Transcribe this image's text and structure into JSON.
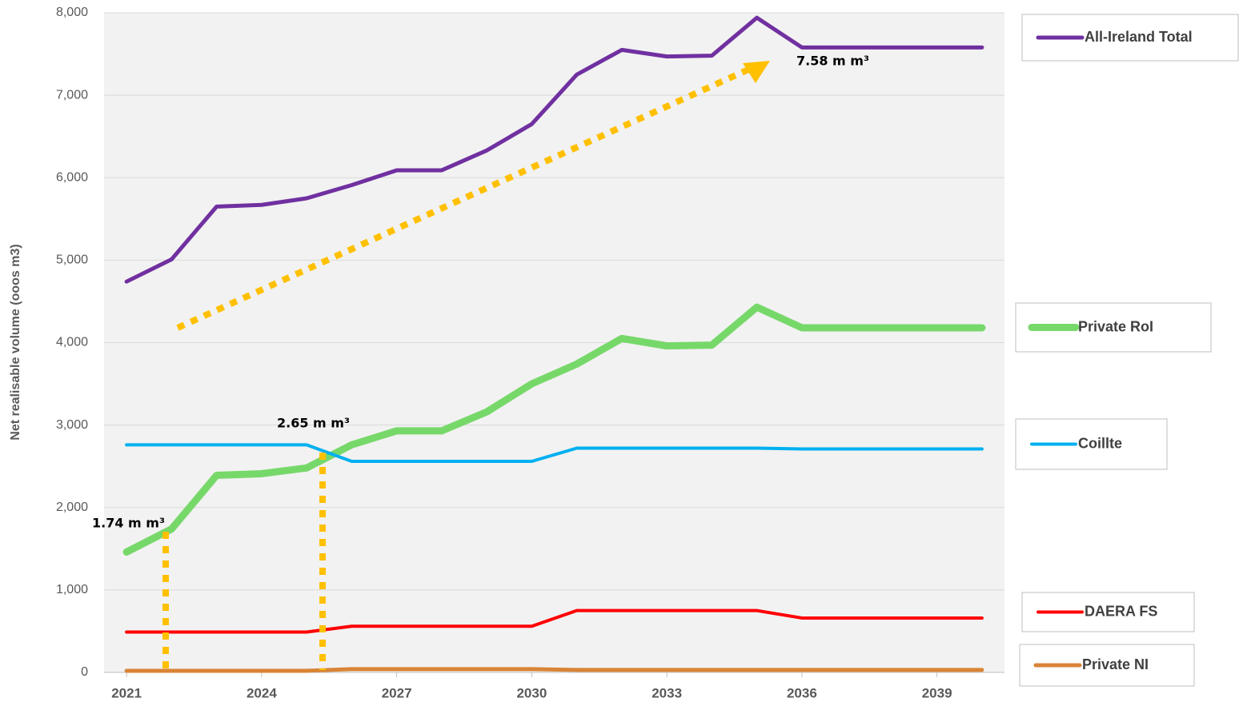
{
  "chart_data": {
    "type": "line",
    "y_label": "Net realisable volume (ooos m3)",
    "x": [
      2021,
      2022,
      2023,
      2024,
      2025,
      2026,
      2027,
      2028,
      2029,
      2030,
      2031,
      2032,
      2033,
      2034,
      2035,
      2036,
      2037,
      2038,
      2039,
      2040
    ],
    "xlim": [
      2020.5,
      2040.5
    ],
    "xticks": [
      2021,
      2024,
      2027,
      2030,
      2033,
      2036,
      2039
    ],
    "ylim": [
      0,
      8000
    ],
    "yticks": [
      0,
      {
        "value": 1000,
        "label": "1,000"
      },
      {
        "value": 2000,
        "label": "2,000"
      },
      {
        "value": 3000,
        "label": "3,000"
      },
      {
        "value": 4000,
        "label": "4,000"
      },
      {
        "value": 5000,
        "label": "5,000"
      },
      {
        "value": 6000,
        "label": "6,000"
      },
      {
        "value": 7000,
        "label": "7,000"
      },
      {
        "value": 8000,
        "label": "8,000"
      }
    ],
    "grid": true,
    "series": [
      {
        "name": "All-Ireland Total",
        "color": "#7030a0",
        "values": [
          4740,
          5010,
          5650,
          5670,
          5750,
          5910,
          6090,
          6090,
          6330,
          6650,
          7250,
          7550,
          7470,
          7480,
          7940,
          7580,
          7580,
          7580,
          7580,
          7580
        ]
      },
      {
        "name": "Private RoI",
        "color": "#77d86a",
        "values": [
          1460,
          1740,
          2390,
          2410,
          2480,
          2760,
          2930,
          2930,
          3160,
          3500,
          3740,
          4050,
          3960,
          3970,
          4430,
          4180,
          4180,
          4180,
          4180,
          4180
        ]
      },
      {
        "name": "Coillte",
        "color": "#00b0f0",
        "values": [
          2760,
          2760,
          2760,
          2760,
          2760,
          2560,
          2560,
          2560,
          2560,
          2560,
          2720,
          2720,
          2720,
          2720,
          2720,
          2710,
          2710,
          2710,
          2710,
          2710
        ]
      },
      {
        "name": "DAERA FS",
        "color": "#ff0000",
        "values": [
          490,
          490,
          490,
          490,
          490,
          560,
          560,
          560,
          560,
          560,
          750,
          750,
          750,
          750,
          750,
          660,
          660,
          660,
          660,
          660
        ]
      },
      {
        "name": "Private NI",
        "color": "#d98436",
        "values": [
          20,
          20,
          20,
          20,
          20,
          40,
          40,
          40,
          40,
          40,
          30,
          30,
          30,
          30,
          30,
          30,
          30,
          30,
          30,
          30
        ]
      }
    ],
    "annotations": [
      "7.58 m m³",
      "2.65 m m³",
      "1.74 m m³"
    ]
  }
}
